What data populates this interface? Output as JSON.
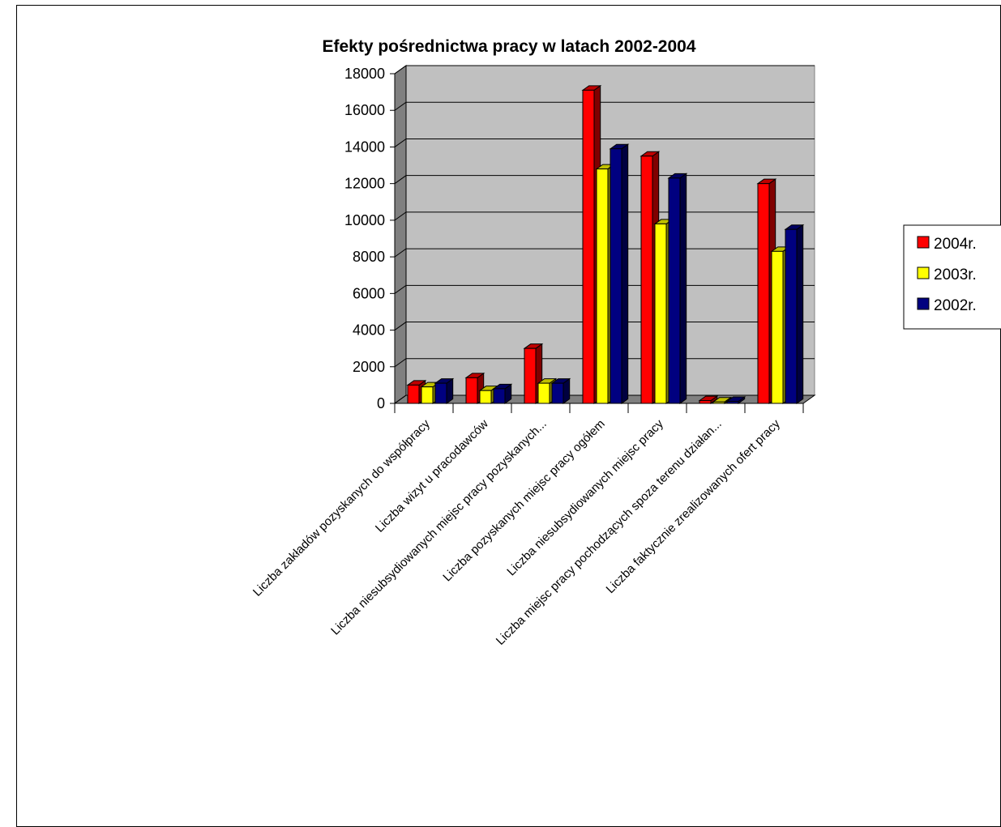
{
  "chart_data": {
    "type": "bar",
    "title": "Efekty pośrednictwa pracy w latach 2002-2004",
    "xlabel": "",
    "ylabel": "",
    "ylim": [
      0,
      18000
    ],
    "yticks": [
      "0",
      "2000",
      "4000",
      "6000",
      "8000",
      "10000",
      "12000",
      "14000",
      "16000",
      "18000"
    ],
    "grid": true,
    "legend_position": "right",
    "categories": [
      "Liczba zakładów pozyskanych do współpracy",
      "Liczba wizyt u pracodawców",
      "Liczba niesubsydiowanych miejsc pracy pozyskanych...",
      "Liczba pozyskanych miejsc pracy ogółem",
      "Liczba niesubsydiowanych miejsc pracy",
      "Liczba miejsc pracy pochodzących spoza terenu działan...",
      "Liczba faktycznie zrealizowanych ofert pracy"
    ],
    "series": [
      {
        "name": "2004r.",
        "color": "#ff0000",
        "values": [
          1000,
          1400,
          3000,
          17100,
          13500,
          150,
          12000
        ]
      },
      {
        "name": "2003r.",
        "color": "#ffff00",
        "values": [
          900,
          700,
          1100,
          12800,
          9800,
          80,
          8300
        ]
      },
      {
        "name": "2002r.",
        "color": "#000080",
        "values": [
          1100,
          800,
          1100,
          13900,
          12300,
          110,
          9500
        ]
      }
    ]
  }
}
